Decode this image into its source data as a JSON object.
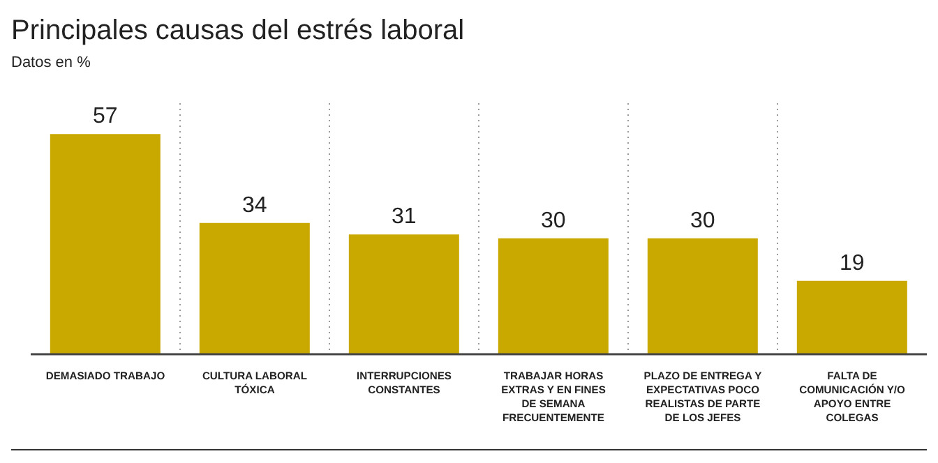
{
  "chart_data": {
    "type": "bar",
    "title": "Principales causas del estrés laboral",
    "subtitle": "Datos en %",
    "categories": [
      "DEMASIADO TRABAJO",
      "CULTURA LABORAL TÓXICA",
      "INTERRUPCIONES CONSTANTES",
      "TRABAJAR HORAS EXTRAS Y EN FINES DE SEMANA FRECUENTEMENTE",
      "PLAZO DE ENTREGA Y EXPECTATIVAS POCO REALISTAS DE PARTE DE LOS JEFES",
      "FALTA DE COMUNICACIÓN Y/O APOYO ENTRE COLEGAS"
    ],
    "values": [
      57,
      34,
      31,
      30,
      30,
      19
    ],
    "color": "#c9a800",
    "data_labels": true,
    "grid": "x"
  }
}
